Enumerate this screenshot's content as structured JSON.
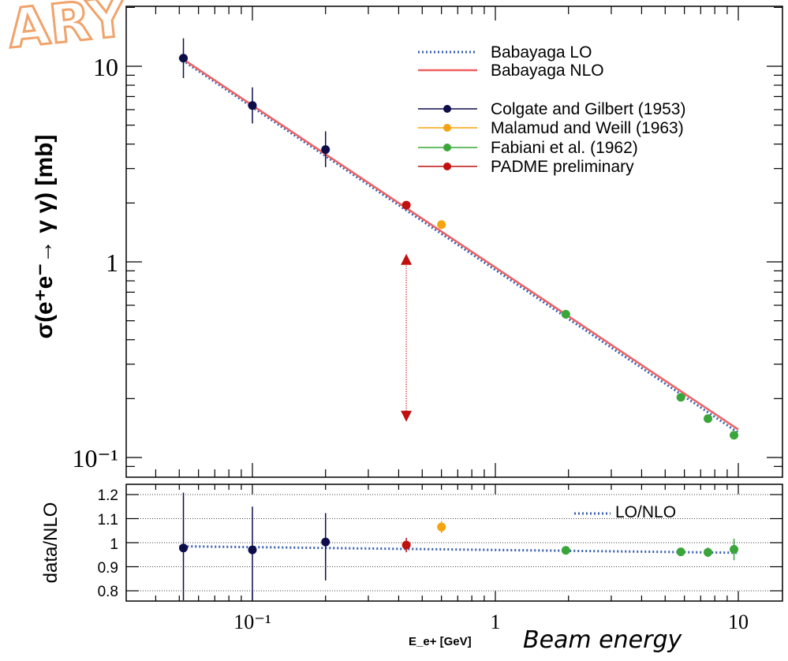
{
  "overlay": {
    "banner_text": "ARY",
    "caption": "Beam energy",
    "banner_color": "#f0a36a"
  },
  "chart_data": [
    {
      "type": "line",
      "x_scale": "log",
      "y_scale": "log",
      "xlim": [
        0.035,
        14
      ],
      "ylim": [
        0.085,
        18
      ],
      "ylabel": "σ(e⁺e⁻→ γ γ) [mb]",
      "xlabel": "E_e+ [GeV]",
      "y_tick_labels": [
        "10",
        "1",
        "10⁻¹"
      ],
      "x_tick_labels": [
        "10⁻¹",
        "1",
        "10"
      ],
      "legend_position": "top-right",
      "series": [
        {
          "name": "Babayaga LO",
          "style": "dotted",
          "color": "#3a5fb0",
          "x": [
            0.05,
            10
          ],
          "y": [
            11.0,
            0.134
          ]
        },
        {
          "name": "Babayaga NLO",
          "style": "solid",
          "color": "#f06060",
          "x": [
            0.05,
            10
          ],
          "y": [
            11.2,
            0.139
          ]
        },
        {
          "name": "Colgate and Gilbert (1953)",
          "style": "markers",
          "color": "#0d0d4a",
          "x": [
            0.052,
            0.1,
            0.2
          ],
          "y": [
            11.0,
            6.3,
            3.75
          ],
          "err_lo": [
            2.3,
            1.2,
            0.7
          ],
          "err_hi": [
            2.9,
            1.5,
            0.9
          ]
        },
        {
          "name": "Malamud and Weill (1963)",
          "style": "markers",
          "color": "#f5a30f",
          "x": [
            0.6
          ],
          "y": [
            1.55
          ],
          "err_lo": [
            0.05
          ],
          "err_hi": [
            0.05
          ]
        },
        {
          "name": "Fabiani et al. (1962)",
          "style": "markers",
          "color": "#3aa63a",
          "x": [
            1.95,
            5.8,
            7.5,
            9.6
          ],
          "y": [
            0.54,
            0.203,
            0.158,
            0.13
          ],
          "err_lo": [
            0.015,
            0.005,
            0.005,
            0.005
          ],
          "err_hi": [
            0.015,
            0.005,
            0.005,
            0.005
          ]
        },
        {
          "name": "PADME preliminary",
          "style": "markers",
          "color": "#c01010",
          "x": [
            0.43
          ],
          "y": [
            1.95
          ],
          "err_lo": [
            0.05
          ],
          "err_hi": [
            0.05
          ]
        }
      ],
      "annotation": {
        "type": "double-arrow",
        "color": "#c01010",
        "x": 0.43,
        "y_top": 1.08,
        "y_bottom": 0.155
      }
    },
    {
      "type": "scatter",
      "x_scale": "log",
      "ylim": [
        0.75,
        1.25
      ],
      "ylabel": "data/NLO",
      "y_tick_labels": [
        "1.2",
        "1.1",
        "1",
        "0.9",
        "0.8"
      ],
      "y_ticks": [
        1.2,
        1.1,
        1.0,
        0.9,
        0.8
      ],
      "grid": true,
      "legend_position": "top-right",
      "series": [
        {
          "name": "LO/NLO",
          "style": "dotted",
          "color": "#3a5fb0",
          "x": [
            0.05,
            10
          ],
          "y": [
            0.985,
            0.958
          ]
        },
        {
          "name": "Colgate and Gilbert (1953)",
          "color": "#0d0d4a",
          "x": [
            0.052,
            0.1,
            0.2
          ],
          "y": [
            0.978,
            0.97,
            1.003
          ],
          "err_lo": [
            0.23,
            0.23,
            0.16
          ],
          "err_hi": [
            0.23,
            0.18,
            0.12
          ]
        },
        {
          "name": "Malamud and Weill (1963)",
          "color": "#f5a30f",
          "x": [
            0.6
          ],
          "y": [
            1.065
          ],
          "err_lo": [
            0.025
          ],
          "err_hi": [
            0.025
          ]
        },
        {
          "name": "Fabiani et al. (1962)",
          "color": "#3aa63a",
          "x": [
            1.95,
            5.8,
            7.5,
            9.6
          ],
          "y": [
            0.968,
            0.962,
            0.96,
            0.972
          ],
          "err_lo": [
            0.015,
            0.015,
            0.02,
            0.045
          ],
          "err_hi": [
            0.015,
            0.015,
            0.02,
            0.045
          ]
        },
        {
          "name": "PADME preliminary",
          "color": "#c01010",
          "x": [
            0.43
          ],
          "y": [
            0.99
          ],
          "err_lo": [
            0.03
          ],
          "err_hi": [
            0.03
          ]
        }
      ]
    }
  ]
}
